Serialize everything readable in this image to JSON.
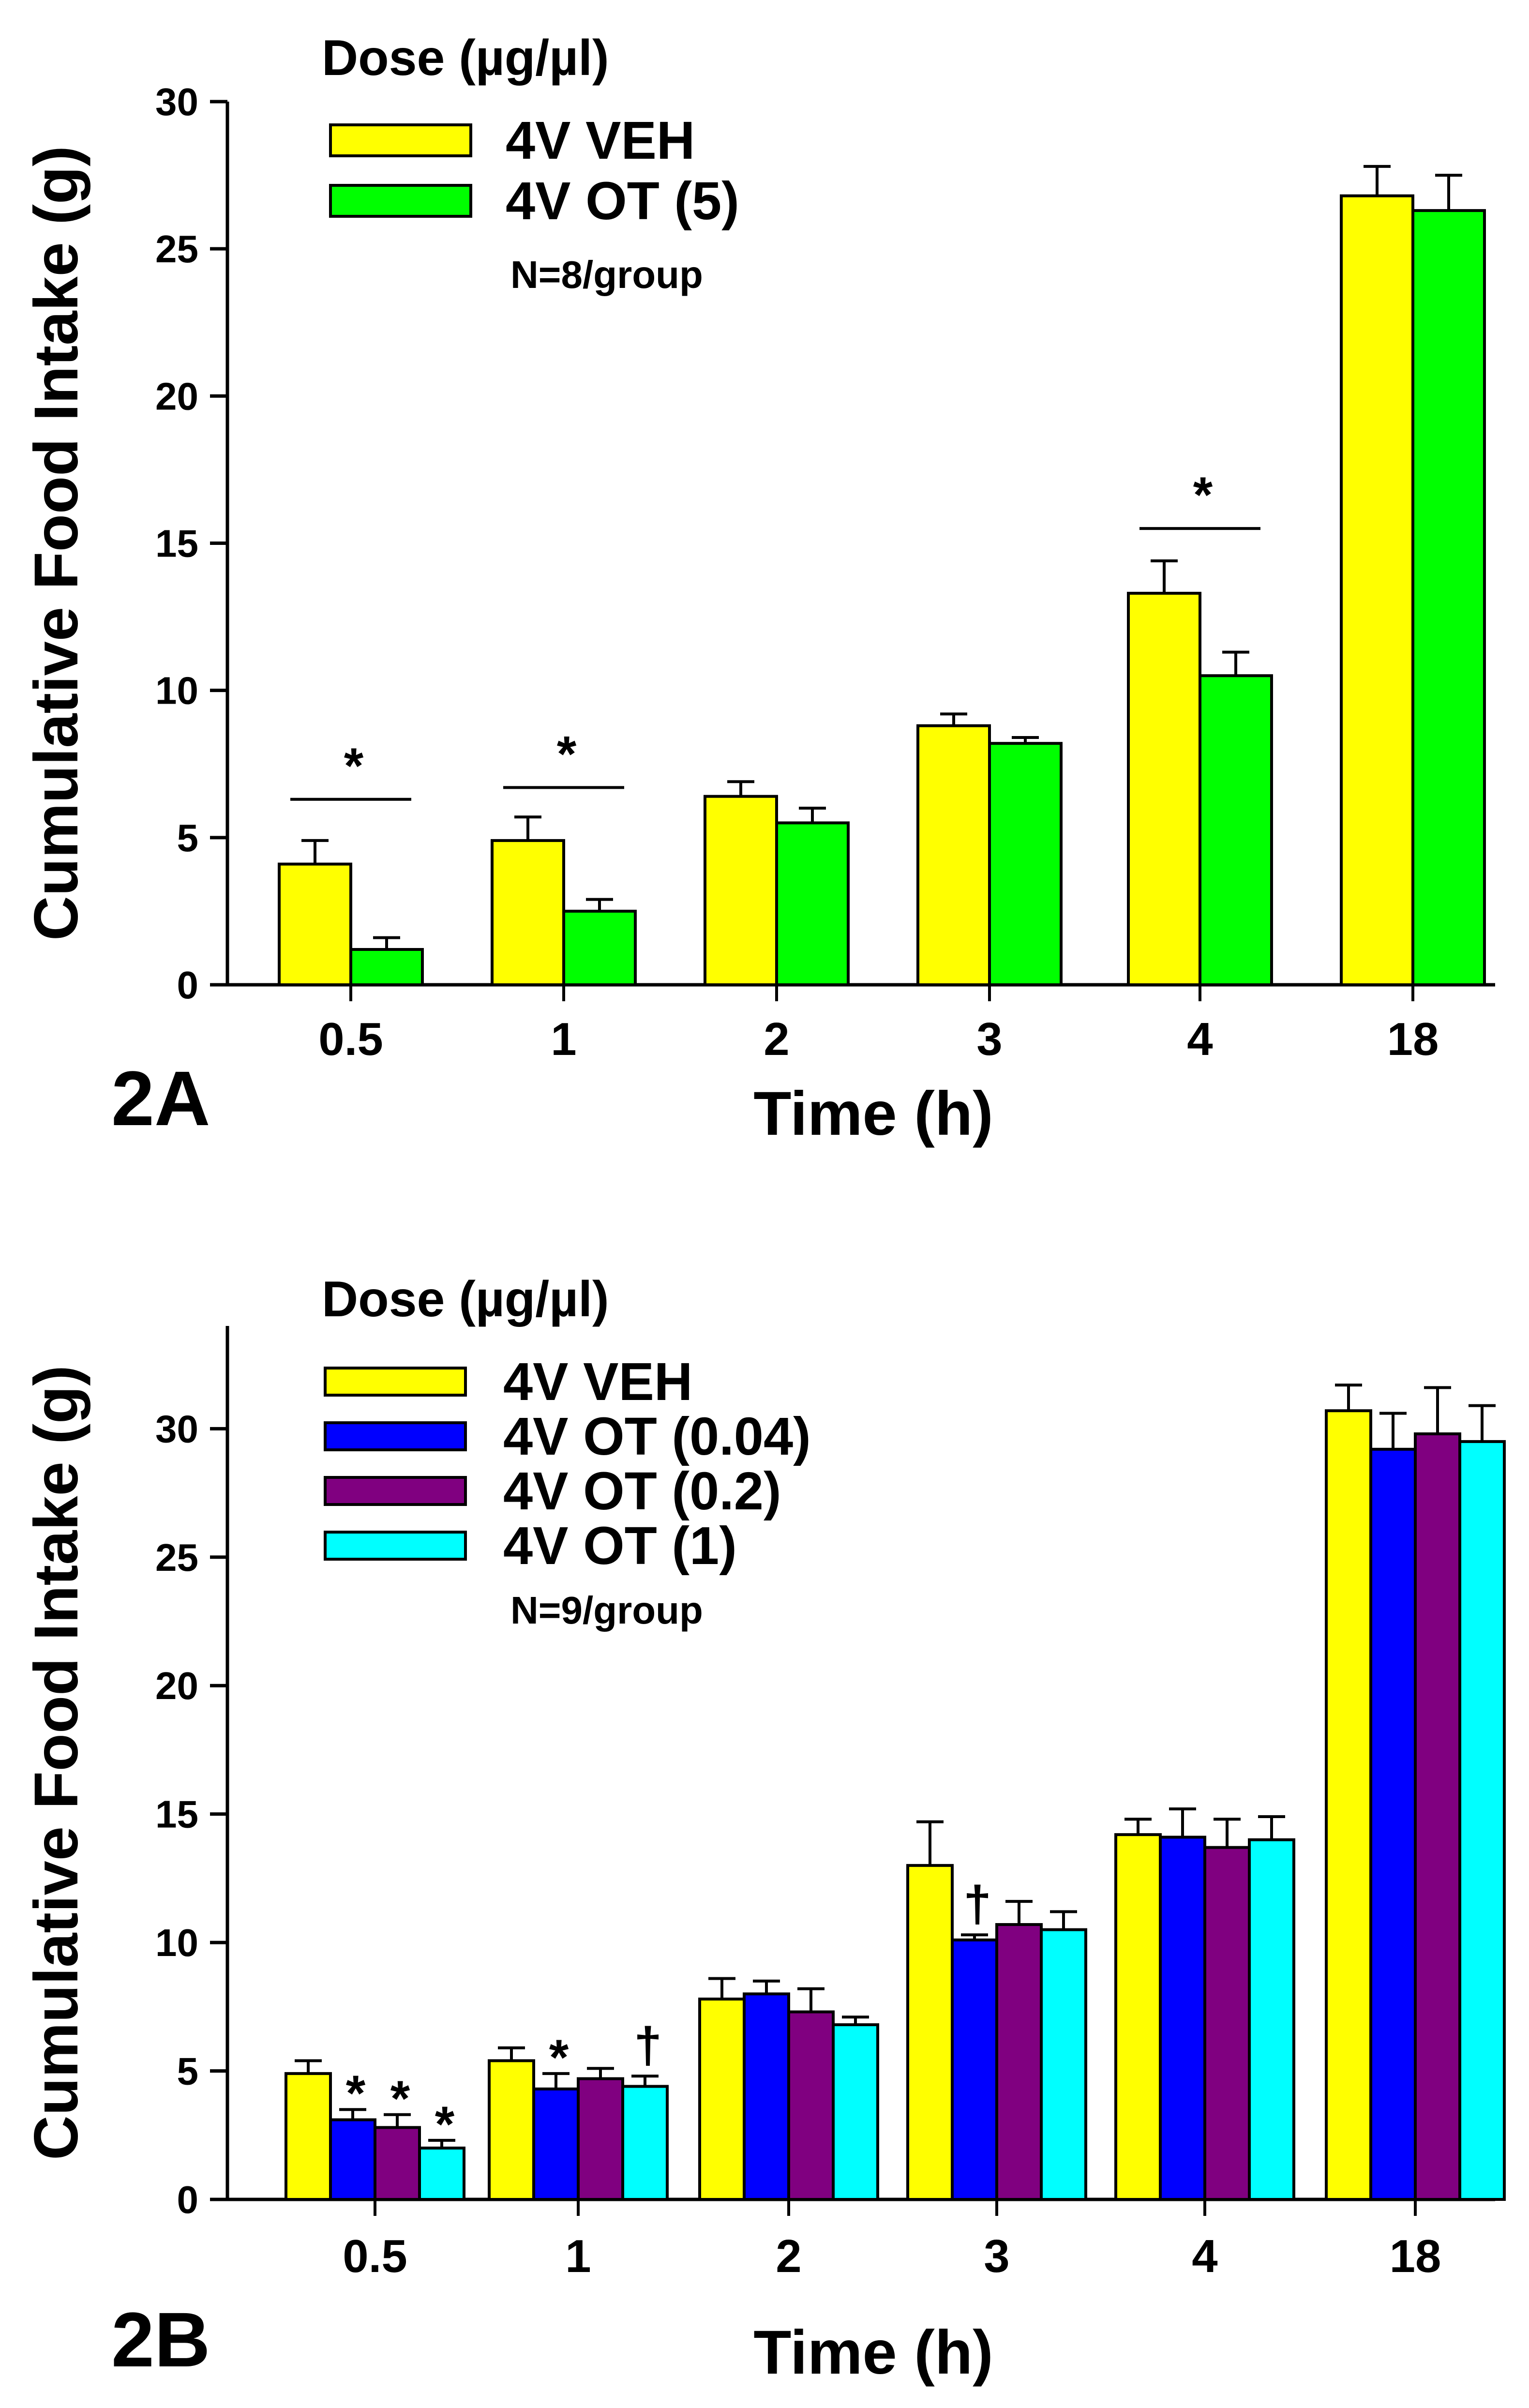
{
  "colors": {
    "yellow": "#ffff00",
    "green": "#00ff00",
    "blue": "#0000ff",
    "purple": "#800080",
    "cyan": "#00ffff"
  },
  "chart_data": [
    {
      "type": "bar",
      "panel_label": "2A",
      "xlabel": "Time (h)",
      "ylabel": "Cumulative Food Intake (g)",
      "ylim": [
        0,
        30
      ],
      "yticks": [
        0,
        5,
        10,
        15,
        20,
        25,
        30
      ],
      "categories": [
        "0.5",
        "1",
        "2",
        "3",
        "4",
        "18"
      ],
      "legend_title": "Dose (µg/µl)",
      "legend_note": "N=8/group",
      "series": [
        {
          "name": "4V VEH",
          "color": "#ffff00",
          "values": [
            4.1,
            4.9,
            6.4,
            8.8,
            13.3,
            26.8
          ],
          "errors": [
            0.8,
            0.8,
            0.5,
            0.4,
            1.1,
            1.0
          ]
        },
        {
          "name": "4V OT (5)",
          "color": "#00ff00",
          "values": [
            1.2,
            2.5,
            5.5,
            8.2,
            10.5,
            26.3
          ],
          "errors": [
            0.4,
            0.4,
            0.5,
            0.2,
            0.8,
            1.2
          ]
        }
      ],
      "annotations": [
        {
          "category": 0,
          "type": "bracket",
          "text": "*",
          "y": 6.3
        },
        {
          "category": 1,
          "type": "bracket",
          "text": "*",
          "y": 6.7
        },
        {
          "category": 4,
          "type": "bracket",
          "text": "*",
          "y": 15.5
        }
      ]
    },
    {
      "type": "bar",
      "panel_label": "2B",
      "xlabel": "Time (h)",
      "ylabel": "Cumulative Food Intake (g)",
      "ylim": [
        0,
        34
      ],
      "yticks": [
        0,
        5,
        10,
        15,
        20,
        25,
        30
      ],
      "categories": [
        "0.5",
        "1",
        "2",
        "3",
        "4",
        "18"
      ],
      "legend_title": "Dose (µg/µl)",
      "legend_note": "N=9/group",
      "series": [
        {
          "name": "4V VEH",
          "color": "#ffff00",
          "values": [
            4.9,
            5.4,
            7.8,
            13.0,
            14.2,
            30.7
          ],
          "errors": [
            0.5,
            0.5,
            0.8,
            1.7,
            0.6,
            1.0
          ]
        },
        {
          "name": "4V OT (0.04)",
          "color": "#0000ff",
          "values": [
            3.1,
            4.3,
            8.0,
            10.1,
            14.1,
            29.2
          ],
          "errors": [
            0.4,
            0.6,
            0.5,
            0.2,
            1.1,
            1.4
          ]
        },
        {
          "name": "4V OT (0.2)",
          "color": "#800080",
          "values": [
            2.8,
            4.7,
            7.3,
            10.7,
            13.7,
            29.8
          ],
          "errors": [
            0.5,
            0.4,
            0.9,
            0.9,
            1.1,
            1.8
          ]
        },
        {
          "name": "4V OT (1)",
          "color": "#00ffff",
          "values": [
            2.0,
            4.4,
            6.8,
            10.5,
            14.0,
            29.5
          ],
          "errors": [
            0.3,
            0.4,
            0.3,
            0.7,
            0.9,
            1.4
          ]
        }
      ],
      "annotations": [
        {
          "category": 0,
          "series": 1,
          "type": "mark",
          "text": "*"
        },
        {
          "category": 0,
          "series": 2,
          "type": "mark",
          "text": "*"
        },
        {
          "category": 0,
          "series": 3,
          "type": "mark",
          "text": "*"
        },
        {
          "category": 1,
          "series": 1,
          "type": "mark",
          "text": "*"
        },
        {
          "category": 1,
          "series": 3,
          "type": "mark",
          "text": "†"
        },
        {
          "category": 3,
          "series": 1,
          "type": "mark",
          "text": "†"
        }
      ]
    }
  ]
}
